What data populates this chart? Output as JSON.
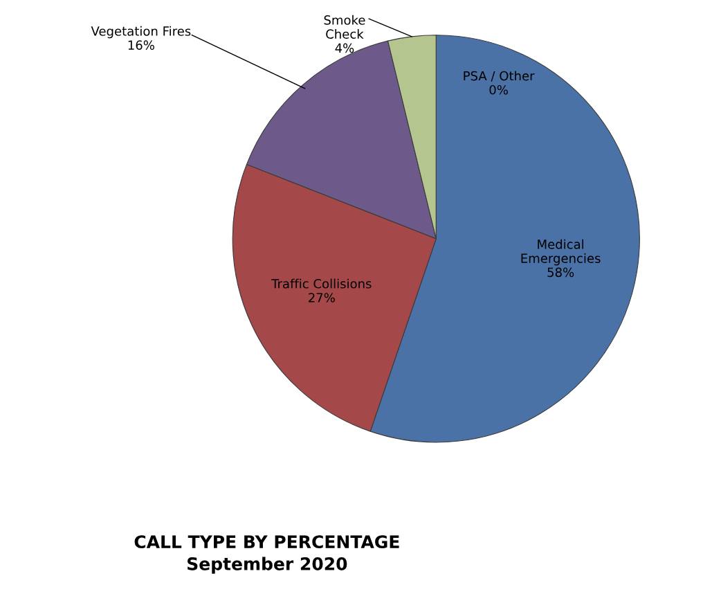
{
  "chart_data": {
    "type": "pie",
    "title": "CALL TYPE BY PERCENTAGE\nSeptember 2020",
    "categories": [
      "PSA / Other",
      "Medical Emergencies",
      "Traffic Collisions",
      "Vegetation Fires",
      "Smoke Check"
    ],
    "values": [
      0,
      58,
      27,
      16,
      4
    ],
    "value_labels": [
      "0%",
      "58%",
      "27%",
      "16%",
      "4%"
    ],
    "colors": [
      "#f79646",
      "#4a72a6",
      "#a5484a",
      "#6e5a8a",
      "#b5c590"
    ]
  }
}
